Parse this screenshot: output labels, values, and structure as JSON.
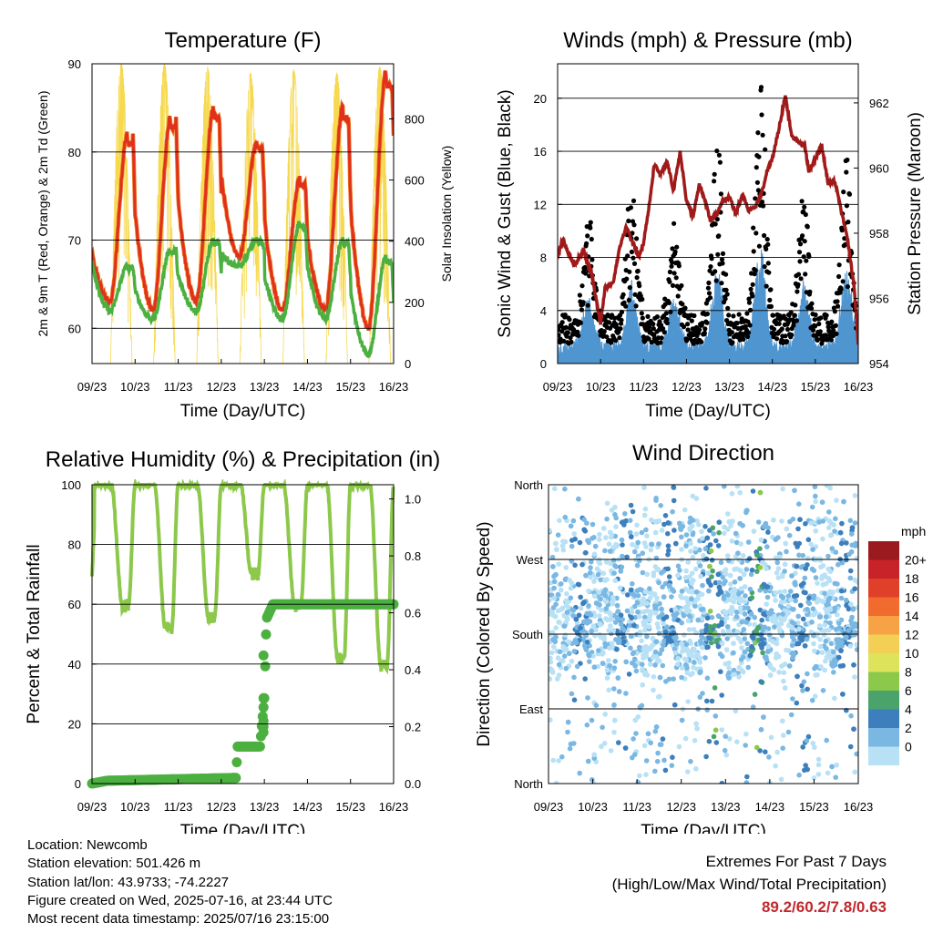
{
  "info": {
    "location": "Location: Newcomb",
    "elevation": "Station elevation: 501.426 m",
    "latlon": "Station lat/lon: 43.9733; -74.2227",
    "created": "Figure created on Wed, 2025-07-16, at 23:44 UTC",
    "recent": "Most recent data timestamp: 2025/07/16 23:15:00"
  },
  "extremes": {
    "title": "Extremes For Past 7 Days",
    "subtitle": "(High/Low/Max Wind/Total Precipitation)",
    "values": "89.2/60.2/7.8/0.63"
  },
  "colors": {
    "temp_2m": "#e0301e",
    "temp_9m": "#f07f1f",
    "dewpoint": "#4cb040",
    "solar": "#f6d94f",
    "wind": "#4f95d0",
    "gust": "#000000",
    "pressure": "#a01a1a",
    "rh": "#8cc84a",
    "precip": "#4cb040"
  },
  "chart_data": [
    {
      "type": "line",
      "title": "Temperature (F)",
      "xlabel": "Time (Day/UTC)",
      "ylabel": "2m & 9m T (Red, Orange) & 2m Td (Green)",
      "y2label": "Solar Insolation (Yellow)",
      "x_ticks": [
        "09/23",
        "10/23",
        "11/23",
        "12/23",
        "13/23",
        "14/23",
        "15/23",
        "16/23"
      ],
      "ylim": [
        56,
        90
      ],
      "y_ticks": [
        60,
        70,
        80,
        90
      ],
      "y2lim": [
        0,
        980
      ],
      "y2_ticks": [
        0,
        200,
        400,
        600,
        800
      ],
      "grid": true,
      "series": [
        {
          "name": "2m T",
          "color": "#e0301e",
          "daily_min": [
            63,
            62,
            63,
            68,
            62,
            62,
            60
          ],
          "daily_max": [
            82,
            84,
            85,
            81,
            77,
            85,
            89
          ],
          "end": 82
        },
        {
          "name": "9m T",
          "color": "#f07f1f"
        },
        {
          "name": "2m Td",
          "color": "#4cb040",
          "daily_min": [
            62,
            61,
            62,
            67,
            61,
            61,
            57
          ],
          "daily_max": [
            67,
            69,
            70,
            70,
            72,
            70,
            68
          ],
          "end": 63
        },
        {
          "name": "Solar Insolation",
          "color": "#f6d94f",
          "daily_peak": [
            980,
            980,
            970,
            950,
            960,
            950,
            970
          ]
        }
      ]
    },
    {
      "type": "line",
      "title": "Winds (mph) & Pressure (mb)",
      "xlabel": "Time (Day/UTC)",
      "ylabel": "Sonic Wind & Gust (Blue, Black)",
      "y2label": "Station Pressure (Maroon)",
      "x_ticks": [
        "09/23",
        "10/23",
        "11/23",
        "12/23",
        "13/23",
        "14/23",
        "15/23",
        "16/23"
      ],
      "ylim": [
        0,
        22.6
      ],
      "y_ticks": [
        0,
        4,
        8,
        12,
        16,
        20
      ],
      "y2lim": [
        954,
        963.2
      ],
      "y2_ticks": [
        954,
        956,
        958,
        960,
        962
      ],
      "grid": true,
      "series": [
        {
          "name": "Pressure",
          "color": "#a01a1a",
          "x": [
            0,
            0.12,
            0.22,
            0.4,
            0.6,
            0.8,
            1.0,
            1.1,
            1.3,
            1.45,
            1.6,
            1.75,
            1.9,
            2.0,
            2.15,
            2.25,
            2.4,
            2.55,
            2.7,
            2.85,
            3.0,
            3.15,
            3.3,
            3.45,
            3.55,
            3.7,
            3.85,
            4.0,
            4.15,
            4.3,
            4.45,
            4.6,
            4.75,
            4.85,
            5.0,
            5.15,
            5.3,
            5.45,
            5.6,
            5.75,
            5.85,
            6.0,
            6.15,
            6.3,
            6.45,
            6.6,
            6.75,
            6.9,
            7.0
          ],
          "y": [
            957.3,
            957.8,
            957.5,
            957.0,
            957.5,
            956.7,
            955.2,
            956.3,
            956.5,
            957.6,
            958.2,
            957.7,
            957.3,
            957.7,
            959.0,
            960.1,
            959.8,
            960.2,
            959.3,
            960.5,
            959.0,
            958.5,
            959.5,
            958.9,
            958.4,
            958.6,
            959.0,
            959.1,
            958.6,
            959.2,
            958.7,
            958.8,
            959.2,
            959.8,
            960.3,
            961.2,
            962.2,
            961.0,
            960.8,
            960.7,
            959.9,
            960.3,
            960.7,
            959.5,
            959.6,
            958.7,
            957.8,
            956.4,
            954.6
          ]
        },
        {
          "name": "Gust",
          "color": "#000000",
          "daily_peak": [
            9,
            11,
            8,
            14,
            20,
            10,
            13
          ],
          "typical_low": 1.5
        },
        {
          "name": "Wind",
          "color": "#4f95d0",
          "daily_peak": [
            4,
            5,
            4,
            6,
            7.8,
            5,
            6
          ],
          "typical_low": 0.5
        }
      ]
    },
    {
      "type": "line",
      "title": "Relative Humidity (%) & Precipitation (in)",
      "xlabel": "Time (Day/UTC)",
      "ylabel": "Percent & Total Rainfall",
      "x_ticks": [
        "09/23",
        "10/23",
        "11/23",
        "12/23",
        "13/23",
        "14/23",
        "15/23",
        "16/23"
      ],
      "ylim": [
        0,
        100
      ],
      "y_ticks": [
        0,
        20,
        40,
        60,
        80,
        100
      ],
      "y2lim": [
        0,
        1.05
      ],
      "y2_ticks": [
        "0.0",
        "0.2",
        "0.4",
        "0.6",
        "0.8",
        "1.0"
      ],
      "grid": true,
      "series": [
        {
          "name": "Relative Humidity",
          "color": "#8cc84a",
          "daily_min": [
            60,
            52,
            56,
            70,
            60,
            42,
            40
          ],
          "max": 100
        },
        {
          "name": "Precipitation",
          "color": "#4cb040",
          "x": [
            0,
            0.35,
            3.35,
            3.37,
            3.9,
            3.95,
            4.0,
            4.05,
            4.2,
            7.0
          ],
          "y": [
            0,
            0.01,
            0.02,
            0.13,
            0.13,
            0.22,
            0.3,
            0.58,
            0.63,
            0.63
          ]
        }
      ]
    },
    {
      "type": "scatter",
      "title": "Wind Direction",
      "xlabel": "Time (Day/UTC)",
      "ylabel": "Direction (Colored By Speed)",
      "x_ticks": [
        "09/23",
        "10/23",
        "11/23",
        "12/23",
        "13/23",
        "14/23",
        "15/23",
        "16/23"
      ],
      "y_ticks": [
        "North",
        "East",
        "South",
        "West",
        "North"
      ],
      "ylim": [
        0,
        360
      ],
      "grid": true,
      "legend": {
        "title": "mph",
        "labels": [
          "20+",
          "18",
          "16",
          "14",
          "12",
          "10",
          "8",
          "6",
          "4",
          "2",
          "0"
        ],
        "colors": [
          "#9a1a1f",
          "#c82327",
          "#e0402a",
          "#f26b2e",
          "#f7a345",
          "#f3cf55",
          "#dde35a",
          "#8cc84a",
          "#4aa36a",
          "#3d7fbd",
          "#7ab8e3",
          "#b8e1f5"
        ]
      }
    }
  ]
}
